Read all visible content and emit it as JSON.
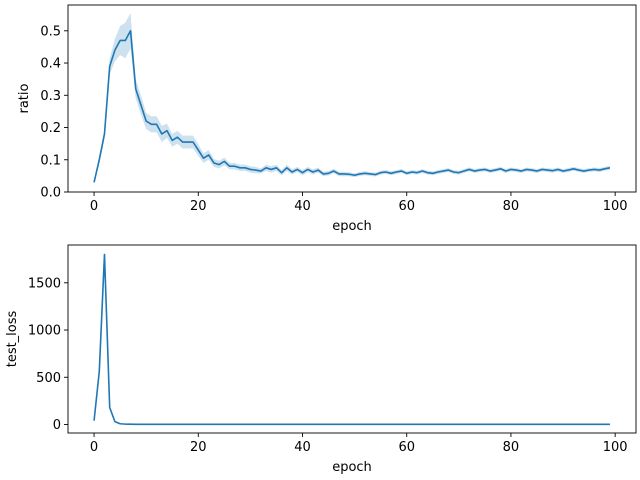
{
  "chart_data": [
    {
      "type": "line",
      "title": "",
      "xlabel": "epoch",
      "ylabel": "ratio",
      "xlim": [
        -5,
        104
      ],
      "ylim": [
        0,
        0.58
      ],
      "xticks": [
        0,
        20,
        40,
        60,
        80,
        100
      ],
      "xtick_labels": [
        "0",
        "20",
        "40",
        "60",
        "80",
        "100"
      ],
      "yticks": [
        0.0,
        0.1,
        0.2,
        0.3,
        0.4,
        0.5
      ],
      "ytick_labels": [
        "0.0",
        "0.1",
        "0.2",
        "0.3",
        "0.4",
        "0.5"
      ],
      "grid": false,
      "legend": "none",
      "color": "#1f77b4",
      "band_color": "#1f77b4",
      "band_opacity": 0.22,
      "series": [
        {
          "x_start": 0,
          "x_step": 1,
          "values": [
            0.03,
            0.1,
            0.18,
            0.39,
            0.44,
            0.47,
            0.47,
            0.5,
            0.32,
            0.27,
            0.22,
            0.21,
            0.21,
            0.18,
            0.19,
            0.16,
            0.17,
            0.155,
            0.155,
            0.155,
            0.13,
            0.105,
            0.115,
            0.09,
            0.085,
            0.095,
            0.08,
            0.08,
            0.075,
            0.075,
            0.07,
            0.068,
            0.065,
            0.075,
            0.07,
            0.075,
            0.06,
            0.075,
            0.062,
            0.07,
            0.06,
            0.07,
            0.062,
            0.068,
            0.056,
            0.058,
            0.065,
            0.056,
            0.056,
            0.055,
            0.052,
            0.056,
            0.058,
            0.056,
            0.054,
            0.06,
            0.062,
            0.058,
            0.062,
            0.065,
            0.058,
            0.062,
            0.06,
            0.065,
            0.06,
            0.058,
            0.062,
            0.065,
            0.068,
            0.062,
            0.06,
            0.065,
            0.07,
            0.065,
            0.068,
            0.07,
            0.065,
            0.068,
            0.072,
            0.065,
            0.07,
            0.068,
            0.065,
            0.07,
            0.068,
            0.065,
            0.07,
            0.068,
            0.066,
            0.07,
            0.065,
            0.068,
            0.072,
            0.068,
            0.065,
            0.068,
            0.07,
            0.068,
            0.072,
            0.075
          ],
          "band_halfwidth": [
            0.004,
            0.012,
            0.015,
            0.025,
            0.035,
            0.045,
            0.055,
            0.055,
            0.03,
            0.03,
            0.025,
            0.025,
            0.025,
            0.025,
            0.022,
            0.02,
            0.02,
            0.02,
            0.02,
            0.02,
            0.018,
            0.015,
            0.015,
            0.012,
            0.012,
            0.012,
            0.01,
            0.01,
            0.01,
            0.01,
            0.01,
            0.01,
            0.008,
            0.01,
            0.01,
            0.01,
            0.008,
            0.01,
            0.008,
            0.008,
            0.008,
            0.008,
            0.008,
            0.008,
            0.007,
            0.007,
            0.007,
            0.007,
            0.007,
            0.006,
            0.006,
            0.006,
            0.006,
            0.006,
            0.006,
            0.006,
            0.006,
            0.006,
            0.006,
            0.006,
            0.006,
            0.006,
            0.006,
            0.006,
            0.006,
            0.006,
            0.006,
            0.006,
            0.006,
            0.006,
            0.006,
            0.006,
            0.006,
            0.006,
            0.006,
            0.006,
            0.006,
            0.006,
            0.006,
            0.006,
            0.006,
            0.006,
            0.006,
            0.006,
            0.006,
            0.006,
            0.006,
            0.006,
            0.006,
            0.006,
            0.006,
            0.006,
            0.006,
            0.006,
            0.006,
            0.006,
            0.006,
            0.006,
            0.006,
            0.006
          ]
        }
      ]
    },
    {
      "type": "line",
      "title": "",
      "xlabel": "epoch",
      "ylabel": "test_loss",
      "xlim": [
        -5,
        104
      ],
      "ylim": [
        -90,
        1900
      ],
      "xticks": [
        0,
        20,
        40,
        60,
        80,
        100
      ],
      "xtick_labels": [
        "0",
        "20",
        "40",
        "60",
        "80",
        "100"
      ],
      "yticks": [
        0,
        500,
        1000,
        1500
      ],
      "ytick_labels": [
        "0",
        "500",
        "1000",
        "1500"
      ],
      "grid": false,
      "legend": "none",
      "color": "#1f77b4",
      "series": [
        {
          "x_start": 0,
          "x_step": 1,
          "values": [
            40,
            560,
            1800,
            180,
            30,
            8,
            4,
            3,
            2,
            2,
            2,
            2,
            2,
            2,
            2,
            2,
            2,
            2,
            2,
            2,
            2,
            2,
            2,
            2,
            2,
            2,
            2,
            2,
            2,
            2,
            2,
            2,
            2,
            2,
            2,
            2,
            2,
            2,
            2,
            2,
            2,
            2,
            2,
            2,
            2,
            2,
            2,
            2,
            2,
            2,
            2,
            2,
            2,
            2,
            2,
            2,
            2,
            2,
            2,
            2,
            2,
            2,
            2,
            2,
            2,
            2,
            2,
            2,
            2,
            2,
            2,
            2,
            2,
            2,
            2,
            2,
            2,
            2,
            2,
            2,
            2,
            2,
            2,
            2,
            2,
            2,
            2,
            2,
            2,
            2,
            2,
            2,
            2,
            2,
            2,
            2,
            2,
            2,
            2,
            2
          ]
        }
      ]
    }
  ]
}
